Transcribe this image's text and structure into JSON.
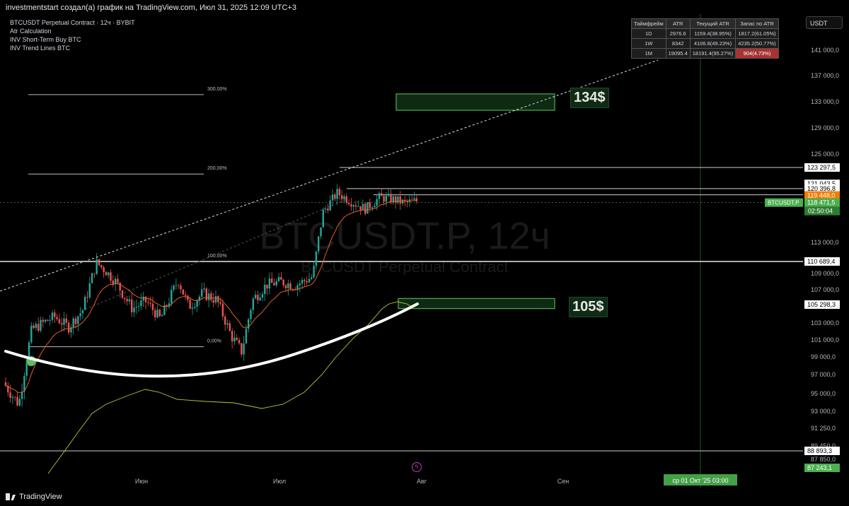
{
  "header": {
    "title": "investmentstart создал(а) график на TradingView.com, Июл 31, 2025 12:09 UTC+3"
  },
  "legend": {
    "symbol_line": "BTCUSDT Perpetual Contract · 12ч · BYBIT",
    "indicators": [
      "Atr Calculation",
      "INV Short-Term Buy BTC",
      "INV Trend Lines BTC"
    ]
  },
  "watermark": {
    "line1": "BTCUSDT.P, 12ч",
    "line2": "BTCUSDT Perpetual Contract"
  },
  "currency_button": "USDT",
  "atr_table": {
    "headers": [
      "Таймфрейм",
      "ATR",
      "Текущий ATR",
      "Запас по ATR"
    ],
    "rows": [
      [
        "1D",
        "2976.6",
        "1159.4(38.95%)",
        "1817.2(61.05%)"
      ],
      [
        "1W",
        "8342",
        "4106.8(49.23%)",
        "4235.2(50.77%)"
      ],
      [
        "1M",
        "19095.4",
        "18191.4(95.27%)",
        "904(4.73%)"
      ]
    ]
  },
  "targets": {
    "upper": "134$",
    "lower": "105$"
  },
  "fib_labels": [
    "300,00%",
    "200,00%",
    "100,00%",
    "0,00%"
  ],
  "symbol_tag": "BTCUSDT.P",
  "countdown": "02:50:04",
  "date_tag": "ср 01 Окт '25   03:00",
  "footer": {
    "brand": "TradingView"
  },
  "colors": {
    "background": "#000000",
    "candle_up": "#26a69a",
    "candle_down": "#ef5350",
    "target_box": "#4caf50",
    "price_current": "#4caf50",
    "price_orange": "#f57c00",
    "ema": "#e0602a",
    "atr_band": "#b8c43a"
  },
  "chart_data": {
    "type": "candlestick",
    "title": "BTCUSDT Perpetual Contract · 12ч · BYBIT",
    "xlabel": "",
    "ylabel": "",
    "x_ticks": [
      "Июн",
      "Июл",
      "Авг",
      "Сен"
    ],
    "y_ticks": [
      141000,
      137000,
      133000,
      129000,
      125000,
      113000,
      109000,
      107000,
      103000,
      101000,
      99000,
      97000,
      95000,
      93000,
      91250,
      89450,
      87850
    ],
    "ylim": [
      86500,
      145000
    ],
    "price_labels": [
      {
        "text": "123 297,5",
        "value": 123297.5,
        "style": "white"
      },
      {
        "text": "121 043,5",
        "value": 121043.5,
        "style": "white"
      },
      {
        "text": "120 396,8",
        "value": 120396.8,
        "style": "white"
      },
      {
        "text": "119 448,0",
        "value": 119448.0,
        "style": "orange"
      },
      {
        "text": "118 471,5",
        "value": 118471.5,
        "style": "green"
      },
      {
        "text": "110 689,4",
        "value": 110689.4,
        "style": "white"
      },
      {
        "text": "105 298,3",
        "value": 105298.3,
        "style": "white"
      },
      {
        "text": "88 893,3",
        "value": 88893.3,
        "style": "white"
      },
      {
        "text": "87 243,1",
        "value": 87243.1,
        "style": "green"
      }
    ],
    "fib_levels": [
      {
        "label": "300,00%",
        "value": 134100
      },
      {
        "label": "200,00%",
        "value": 122400
      },
      {
        "label": "100,00%",
        "value": 110689.4
      },
      {
        "label": "0,00%",
        "value": 100200
      }
    ],
    "target_zones": [
      {
        "label": "134$",
        "low": 131700,
        "high": 134200
      },
      {
        "label": "105$",
        "low": 104800,
        "high": 106000
      }
    ]
  }
}
